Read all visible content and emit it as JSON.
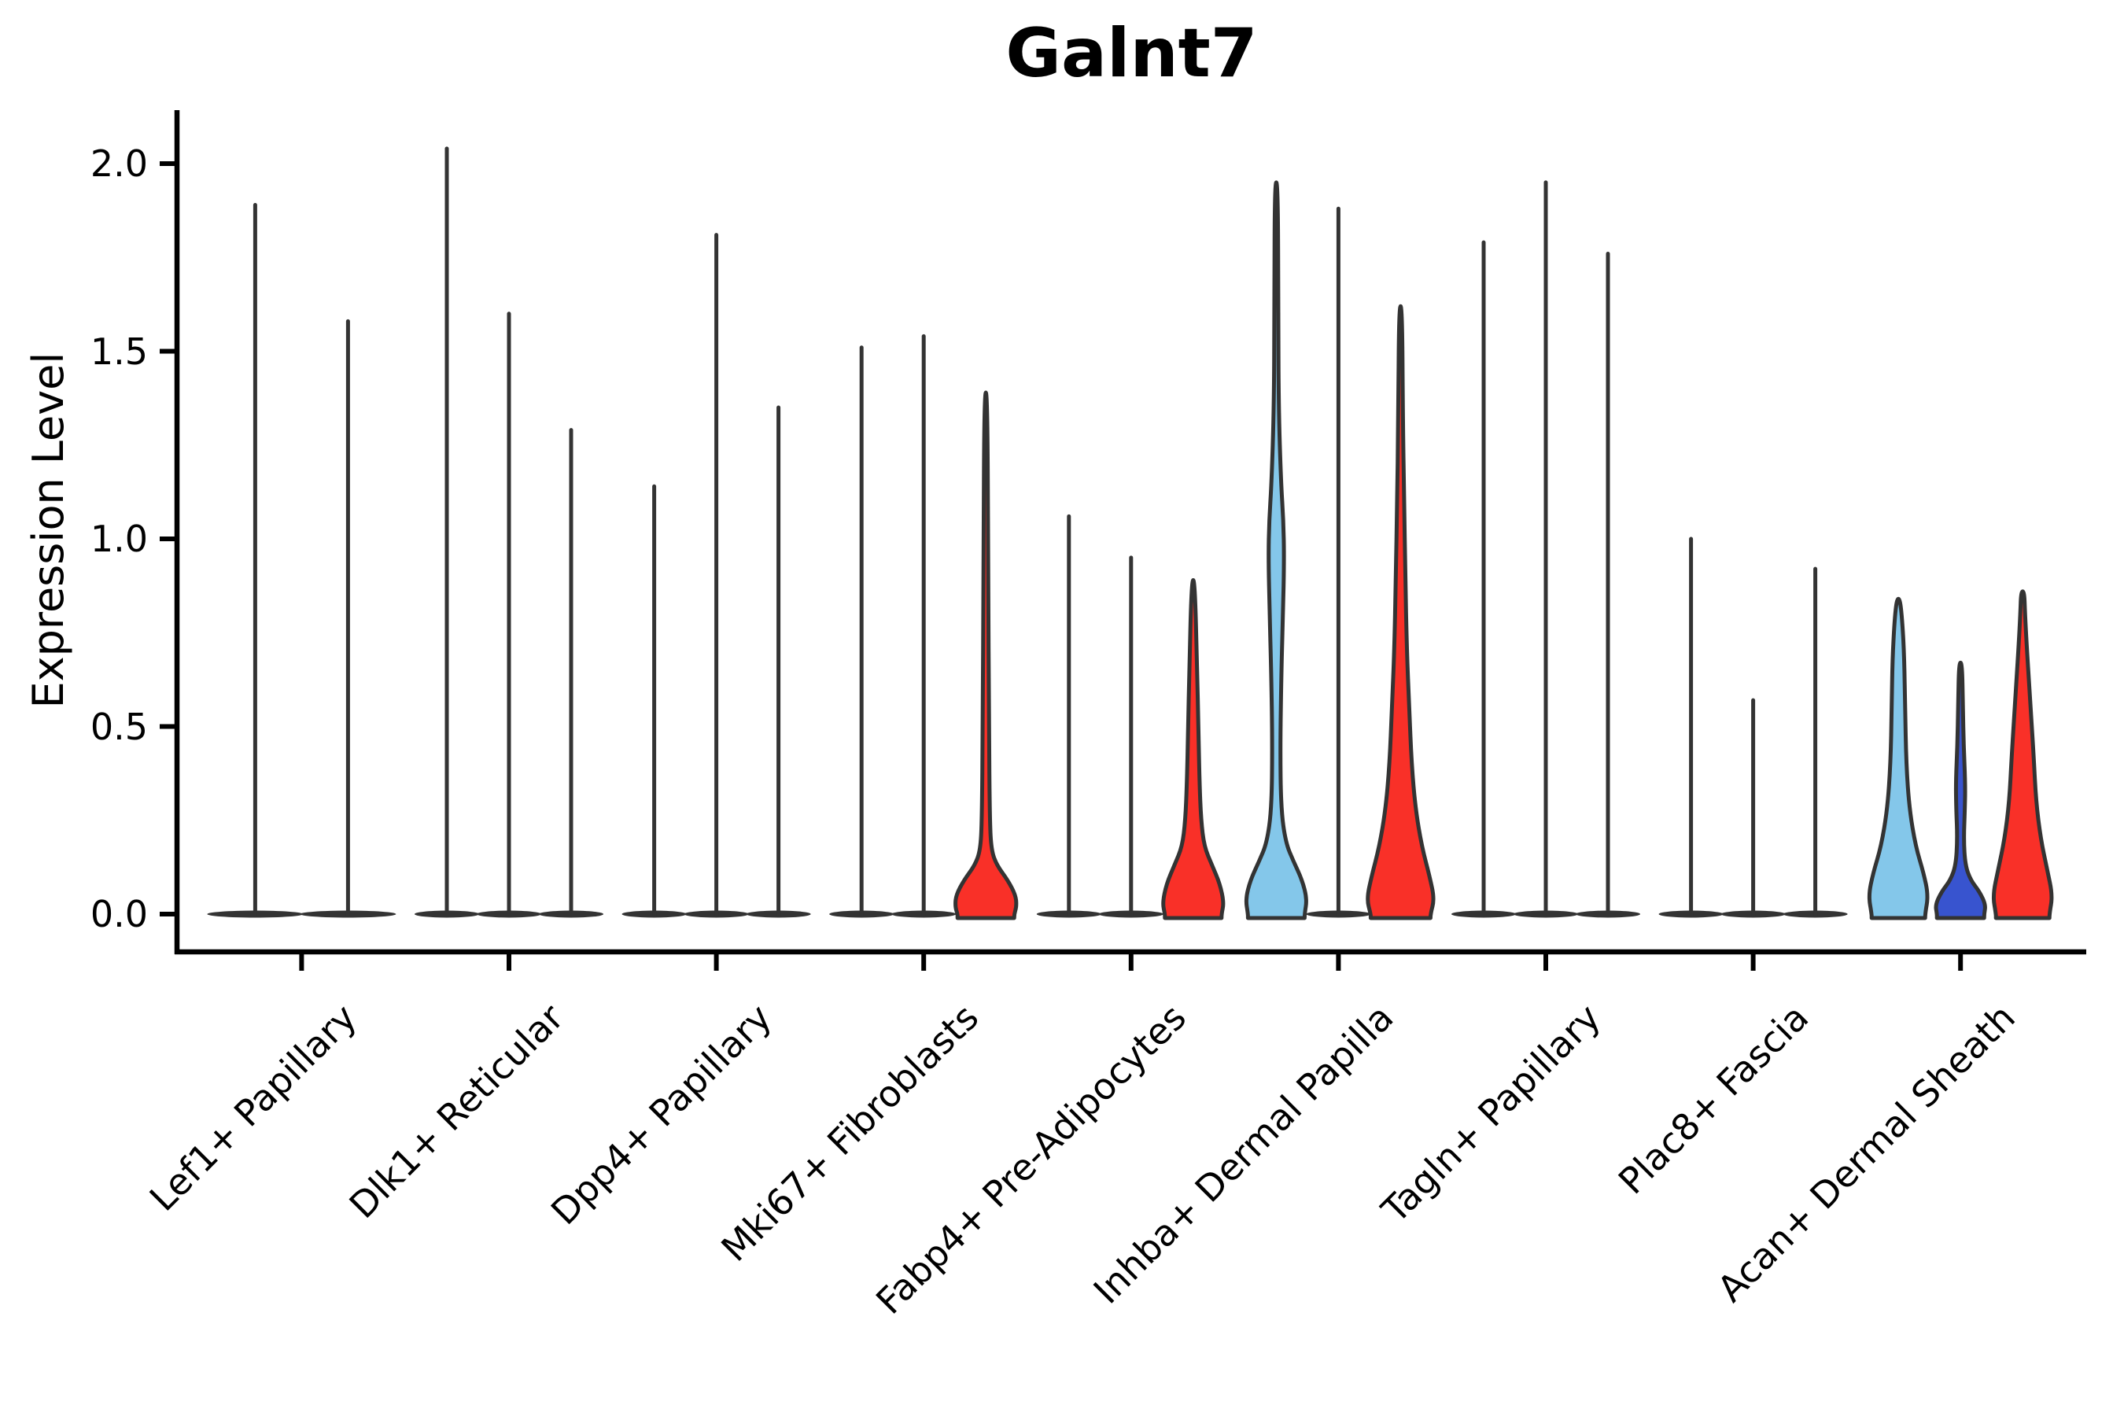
{
  "figure": {
    "background": "#FFFFFF"
  },
  "chart_data": {
    "type": "violin",
    "title": "Galnt7",
    "ylabel": "Expression Level",
    "yticks": [
      0.0,
      0.5,
      1.0,
      1.5,
      2.0
    ],
    "yticklabels": [
      "0.0",
      "0.5",
      "1.0",
      "1.5",
      "2.0"
    ],
    "ylim": [
      0,
      2.15
    ],
    "grid": false,
    "legend": "none",
    "colors": {
      "red": "#F93028",
      "lightblue": "#84C7EA",
      "blue": "#3854CF",
      "stroke": "#333333",
      "axis": "#000000"
    },
    "categories": [
      "Lef1+ Papillary",
      "Dlk1+ Reticular",
      "Dpp4+ Papillary",
      "Mki67+ Fibroblasts",
      "Fabp4+ Pre-Adipocytes",
      "Inhba+ Dermal Papilla",
      "Tagln+ Papillary",
      "Plac8+ Fascia",
      "Acan+ Dermal Sheath"
    ],
    "groups": [
      {
        "category": "Lef1+ Papillary",
        "violins": [
          {
            "color": "none",
            "max": 1.89
          },
          {
            "color": "none",
            "max": 1.58
          }
        ]
      },
      {
        "category": "Dlk1+ Reticular",
        "violins": [
          {
            "color": "none",
            "max": 2.04
          },
          {
            "color": "none",
            "max": 1.6
          },
          {
            "color": "none",
            "max": 1.29
          }
        ]
      },
      {
        "category": "Dpp4+ Papillary",
        "violins": [
          {
            "color": "none",
            "max": 1.14
          },
          {
            "color": "none",
            "max": 1.81
          },
          {
            "color": "none",
            "max": 1.35
          }
        ]
      },
      {
        "category": "Mki67+ Fibroblasts",
        "violins": [
          {
            "color": "none",
            "max": 1.51
          },
          {
            "color": "none",
            "max": 1.54
          },
          {
            "color": "red",
            "max": 1.39,
            "profile": [
              [
                0,
                36
              ],
              [
                0.02,
                39
              ],
              [
                0.05,
                38
              ],
              [
                0.09,
                28
              ],
              [
                0.13,
                14
              ],
              [
                0.17,
                7
              ],
              [
                0.25,
                5
              ],
              [
                0.5,
                4
              ],
              [
                0.9,
                3
              ],
              [
                1.39,
                2
              ]
            ]
          }
        ]
      },
      {
        "category": "Fabp4+ Pre-Adipocytes",
        "violins": [
          {
            "color": "none",
            "max": 1.06
          },
          {
            "color": "none",
            "max": 0.95
          },
          {
            "color": "red",
            "max": 0.89,
            "profile": [
              [
                0,
                36
              ],
              [
                0.03,
                39
              ],
              [
                0.08,
                34
              ],
              [
                0.13,
                24
              ],
              [
                0.18,
                14
              ],
              [
                0.25,
                10
              ],
              [
                0.35,
                8
              ],
              [
                0.5,
                6.5
              ],
              [
                0.65,
                5
              ],
              [
                0.89,
                2
              ]
            ]
          }
        ]
      },
      {
        "category": "Inhba+ Dermal Papilla",
        "violins": [
          {
            "color": "lightblue",
            "max": 1.95,
            "profile": [
              [
                0,
                36
              ],
              [
                0.04,
                39
              ],
              [
                0.09,
                33
              ],
              [
                0.14,
                22
              ],
              [
                0.19,
                12
              ],
              [
                0.28,
                6
              ],
              [
                0.45,
                5
              ],
              [
                0.65,
                6.5
              ],
              [
                0.8,
                8.5
              ],
              [
                0.95,
                10
              ],
              [
                1.05,
                9
              ],
              [
                1.15,
                6
              ],
              [
                1.35,
                3
              ],
              [
                1.6,
                2.5
              ],
              [
                1.95,
                2
              ]
            ]
          },
          {
            "color": "none",
            "max": 1.88
          },
          {
            "color": "red",
            "max": 1.62,
            "profile": [
              [
                0,
                38
              ],
              [
                0.04,
                43
              ],
              [
                0.1,
                37
              ],
              [
                0.18,
                27
              ],
              [
                0.28,
                19
              ],
              [
                0.4,
                14
              ],
              [
                0.55,
                11
              ],
              [
                0.7,
                8
              ],
              [
                0.9,
                6
              ],
              [
                1.1,
                4.5
              ],
              [
                1.3,
                3
              ],
              [
                1.62,
                2
              ]
            ]
          }
        ]
      },
      {
        "category": "Tagln+ Papillary",
        "violins": [
          {
            "color": "none",
            "max": 1.79
          },
          {
            "color": "none",
            "max": 1.95
          },
          {
            "color": "none",
            "max": 1.76
          }
        ]
      },
      {
        "category": "Plac8+ Fascia",
        "violins": [
          {
            "color": "none",
            "max": 1.0
          },
          {
            "color": "none",
            "max": 0.57
          },
          {
            "color": "none",
            "max": 0.92
          }
        ]
      },
      {
        "category": "Acan+ Dermal Sheath",
        "violins": [
          {
            "color": "lightblue",
            "max": 0.84,
            "profile": [
              [
                0,
                34
              ],
              [
                0.05,
                38
              ],
              [
                0.11,
                32
              ],
              [
                0.18,
                22
              ],
              [
                0.28,
                14
              ],
              [
                0.4,
                10
              ],
              [
                0.55,
                8.5
              ],
              [
                0.68,
                7.5
              ],
              [
                0.78,
                5
              ],
              [
                0.84,
                2
              ]
            ]
          },
          {
            "color": "blue",
            "max": 0.67,
            "profile": [
              [
                0,
                30
              ],
              [
                0.025,
                32
              ],
              [
                0.06,
                24
              ],
              [
                0.09,
                13
              ],
              [
                0.13,
                6
              ],
              [
                0.2,
                4
              ],
              [
                0.28,
                5.5
              ],
              [
                0.35,
                6
              ],
              [
                0.45,
                4
              ],
              [
                0.55,
                3
              ],
              [
                0.67,
                2
              ]
            ]
          },
          {
            "color": "red",
            "max": 0.86,
            "profile": [
              [
                0,
                34
              ],
              [
                0.05,
                38
              ],
              [
                0.12,
                31
              ],
              [
                0.2,
                23
              ],
              [
                0.3,
                17
              ],
              [
                0.42,
                14
              ],
              [
                0.52,
                11
              ],
              [
                0.62,
                8
              ],
              [
                0.72,
                5
              ],
              [
                0.8,
                3
              ],
              [
                0.86,
                2
              ]
            ]
          }
        ]
      }
    ]
  }
}
